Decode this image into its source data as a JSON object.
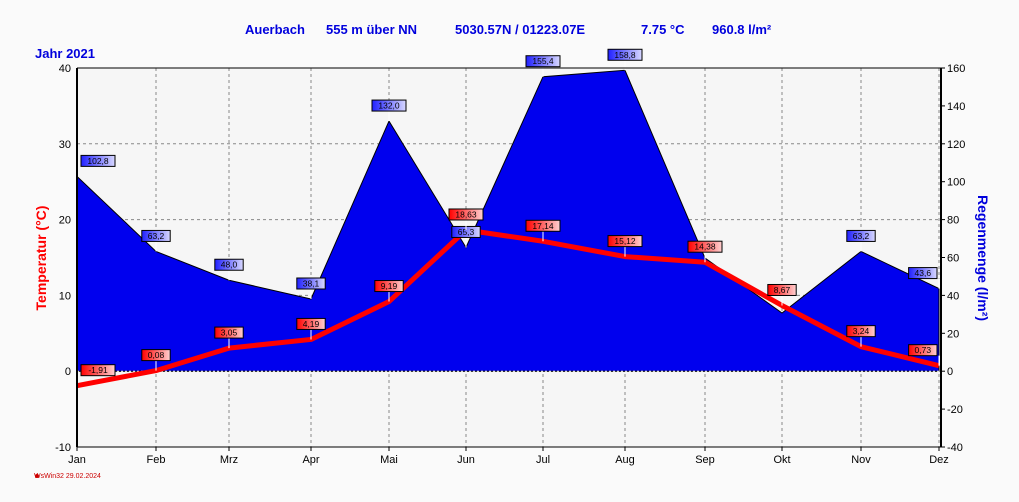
{
  "header": {
    "station": "Auerbach",
    "altitude": "555 m über NN",
    "coords": "5030.57N / 01223.07E",
    "avg_temp": "7.75 °C",
    "total_rain": "960.8 l/m²",
    "year_label": "Jahr  2021"
  },
  "footer": {
    "text": "WsWin32  29.02.2024"
  },
  "chart_data": {
    "type": "line+area",
    "categories": [
      "Jan",
      "Feb",
      "Mrz",
      "Apr",
      "Mai",
      "Jun",
      "Jul",
      "Aug",
      "Sep",
      "Okt",
      "Nov",
      "Dez"
    ],
    "series": [
      {
        "name": "Temperatur",
        "axis": "left",
        "type": "line",
        "color": "#ff0000",
        "values": [
          -1.91,
          0.08,
          3.05,
          4.19,
          9.19,
          18.63,
          17.14,
          15.12,
          14.38,
          8.67,
          3.24,
          0.73
        ],
        "labels": [
          "-1,91",
          "0,08",
          "3,05",
          "4,19",
          "9,19",
          "18,63",
          "17,14",
          "15,12",
          "14,38",
          "8,67",
          "3,24",
          "0,73"
        ]
      },
      {
        "name": "Regenmenge",
        "axis": "right",
        "type": "area",
        "color": "#0000ee",
        "values": [
          102.8,
          63.2,
          48.0,
          38.1,
          132.0,
          65.3,
          155.4,
          158.8,
          59.7,
          30.7,
          63.2,
          43.6
        ],
        "labels": [
          "102,8",
          "63,2",
          "48,0",
          "38,1",
          "132,0",
          "65,3",
          "155,4",
          "158,8",
          "59,7",
          "30,7",
          "63,2",
          "43,6"
        ]
      }
    ],
    "ylabel": "Temperatur  (°C)",
    "y2label": "Regenmenge  (l/m²)",
    "ylim": [
      -10,
      40
    ],
    "y2lim": [
      -40,
      160
    ],
    "yticks": [
      "-10",
      "0",
      "10",
      "20",
      "30",
      "40"
    ],
    "y2ticks": [
      "-40",
      "-20",
      "0",
      "20",
      "40",
      "60",
      "80",
      "100",
      "120",
      "140",
      "160"
    ],
    "grid": true
  }
}
